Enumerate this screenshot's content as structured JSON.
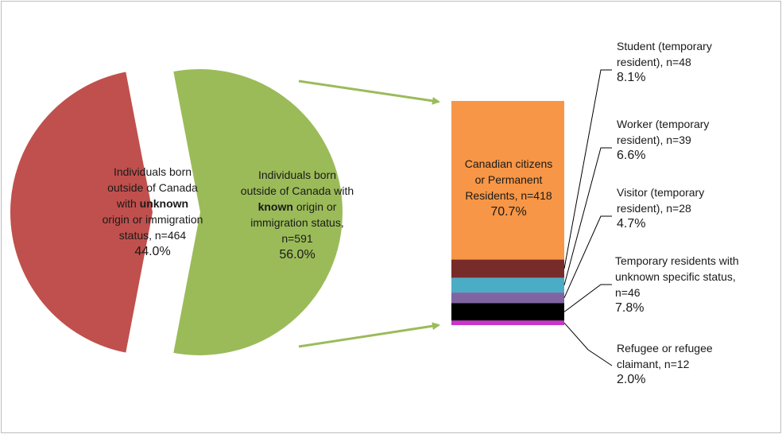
{
  "chart_data": [
    {
      "type": "pie",
      "slices": [
        {
          "label_lines": [
            "Individuals born",
            "outside of Canada",
            "with ",
            "origin or immigration",
            "status, n=464"
          ],
          "bold_word": "unknown",
          "n": 464,
          "value": 44.0,
          "pct_label": "44.0%",
          "color": "#c0504d"
        },
        {
          "label_lines": [
            "Individuals born",
            "outside of Canada with",
            " origin or",
            "immigration status,",
            "n=591"
          ],
          "bold_word": "known",
          "n": 591,
          "value": 56.0,
          "pct_label": "56.0%",
          "color": "#9bbb59"
        }
      ]
    },
    {
      "type": "bar",
      "stacked": true,
      "segments": [
        {
          "label": "Canadian citizens or Permanent Residents, n=418",
          "label_lines": [
            "Canadian citizens",
            "or Permanent",
            "Residents, n=418"
          ],
          "n": 418,
          "value": 70.7,
          "pct_label": "70.7%",
          "color": "#f79646"
        },
        {
          "label_lines": [
            "Student (temporary",
            "resident), n=48"
          ],
          "n": 48,
          "value": 8.1,
          "pct_label": "8.1%",
          "color": "#772c2a"
        },
        {
          "label_lines": [
            "Worker (temporary",
            "resident), n=39"
          ],
          "n": 39,
          "value": 6.6,
          "pct_label": "6.6%",
          "color": "#4bacc6"
        },
        {
          "label_lines": [
            "Visitor (temporary",
            "resident), n=28"
          ],
          "n": 28,
          "value": 4.7,
          "pct_label": "4.7%",
          "color": "#8064a2"
        },
        {
          "label_lines": [
            "Temporary residents with",
            "unknown specific status,",
            "n=46"
          ],
          "n": 46,
          "value": 7.8,
          "pct_label": "7.8%",
          "color": "#000000"
        },
        {
          "label_lines": [
            "Refugee or refugee",
            "claimant, n=12"
          ],
          "n": 12,
          "value": 2.0,
          "pct_label": "2.0%",
          "color": "#cc33cc"
        }
      ]
    }
  ]
}
